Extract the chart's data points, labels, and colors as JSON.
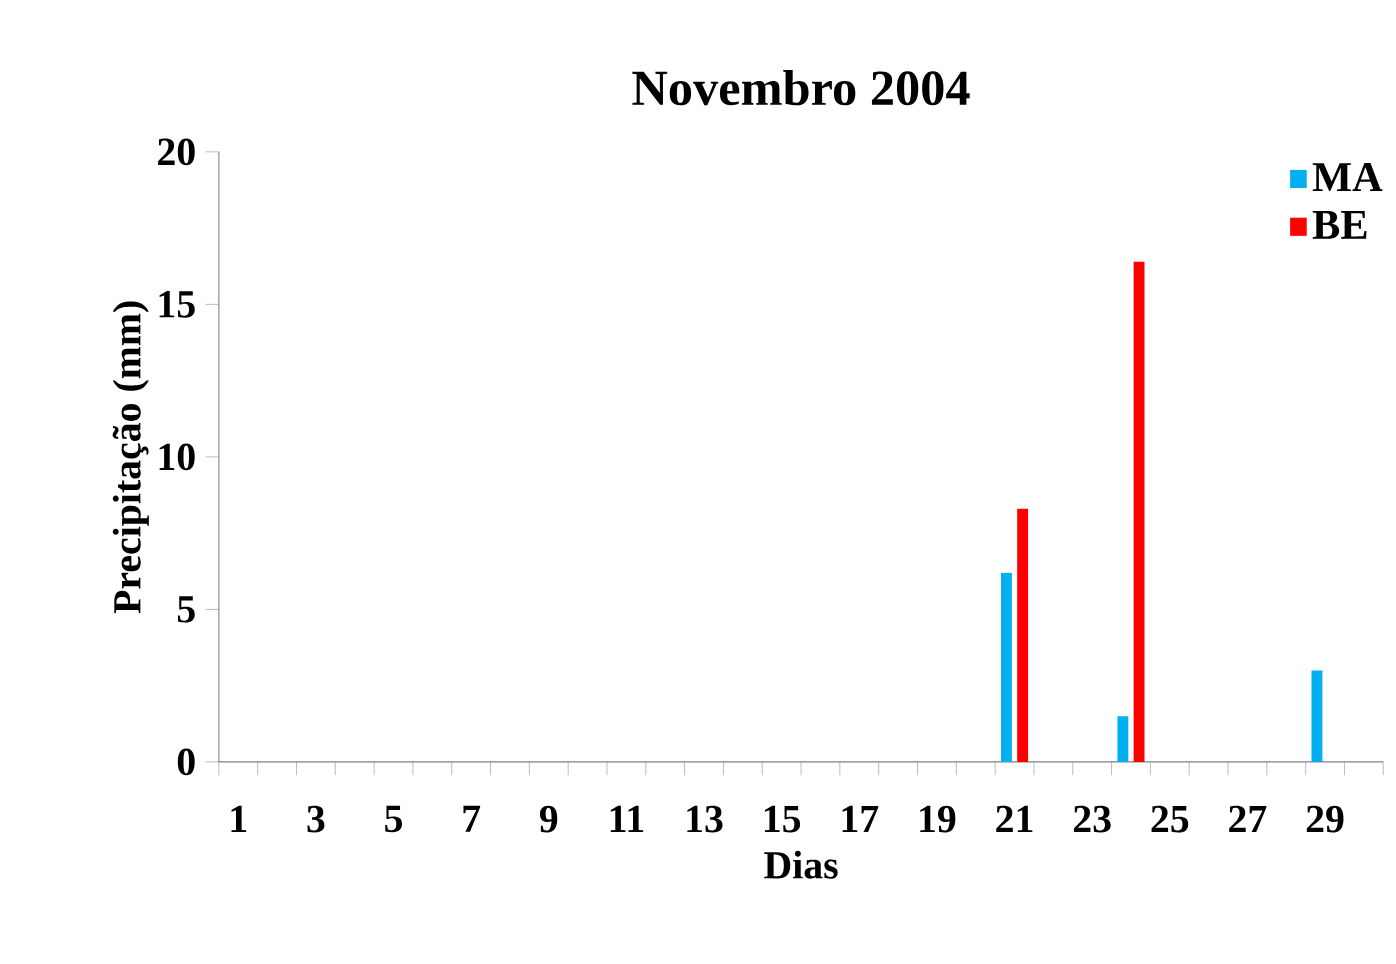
{
  "chart_data": {
    "type": "bar",
    "title": "Novembro 2004",
    "xlabel": "Dias",
    "ylabel": "Precipitação (mm)",
    "categories": [
      "1",
      null,
      "3",
      null,
      "5",
      null,
      "7",
      null,
      "9",
      null,
      "11",
      null,
      "13",
      null,
      "15",
      null,
      "17",
      null,
      "19",
      null,
      "21",
      null,
      "23",
      null,
      "25",
      null,
      "27",
      null,
      "29",
      null
    ],
    "series": [
      {
        "name": "MA",
        "color": "#00b0f0",
        "values": [
          0,
          0,
          0,
          0,
          0,
          0,
          0,
          0,
          0,
          0,
          0,
          0,
          0,
          0,
          0,
          0,
          0,
          0,
          0,
          0,
          6.2,
          0,
          0,
          1.5,
          0,
          0,
          0,
          0,
          3.0,
          0
        ]
      },
      {
        "name": "BE",
        "color": "#ff0000",
        "values": [
          0,
          0,
          0,
          0,
          0,
          0,
          0,
          0,
          0,
          0,
          0,
          0,
          0,
          0,
          0,
          0,
          0,
          0,
          0,
          0,
          8.3,
          0,
          0,
          16.4,
          0,
          0,
          0,
          0,
          0,
          0
        ]
      }
    ],
    "ylim": [
      0,
      20
    ],
    "yticks": [
      0,
      5,
      10,
      15,
      20
    ],
    "grid": false,
    "legend": "top right"
  }
}
